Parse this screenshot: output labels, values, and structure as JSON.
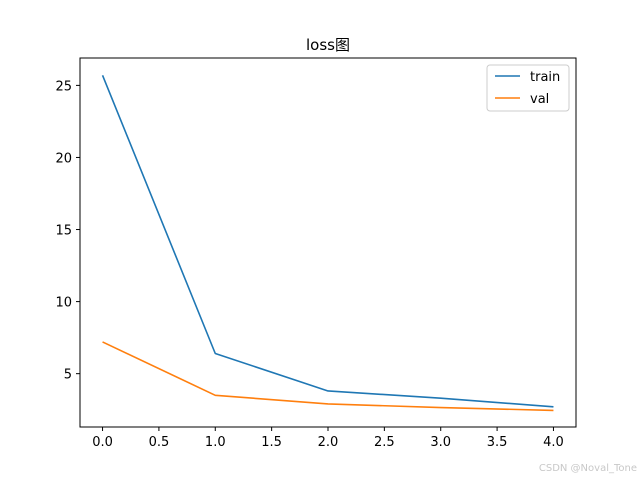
{
  "chart_data": {
    "type": "line",
    "title": "loss图",
    "xlabel": "",
    "ylabel": "",
    "x": [
      0,
      1,
      2,
      3,
      4
    ],
    "xlim": [
      -0.2,
      4.2
    ],
    "ylim": [
      1.3,
      26.9
    ],
    "xticks": [
      "0.0",
      "0.5",
      "1.0",
      "1.5",
      "2.0",
      "2.5",
      "3.0",
      "3.5",
      "4.0"
    ],
    "yticks": [
      "5",
      "10",
      "15",
      "20",
      "25"
    ],
    "grid": false,
    "legend_position": "top-right",
    "series": [
      {
        "name": "train",
        "color": "#1f77b4",
        "values": [
          25.7,
          6.4,
          3.8,
          3.3,
          2.7
        ]
      },
      {
        "name": "val",
        "color": "#ff7f0e",
        "values": [
          7.2,
          3.5,
          2.9,
          2.65,
          2.45
        ]
      }
    ]
  },
  "watermark": "CSDN @Noval_Tone"
}
